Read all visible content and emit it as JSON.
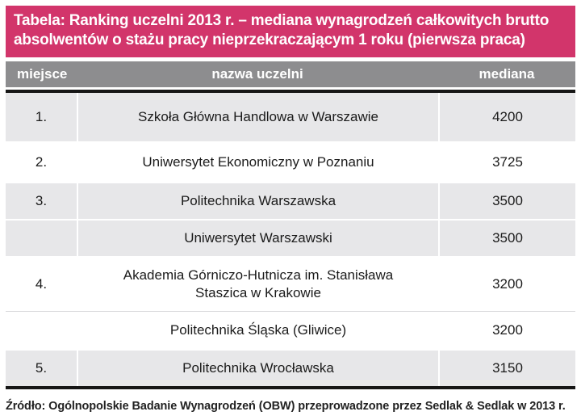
{
  "header": {
    "line1": "Tabela: Ranking uczelni 2013 r. – mediana wynagrodzeń całkowitych brutto",
    "line2": "absolwentów o stażu pracy nieprzekraczającym 1 roku (pierwsza praca)"
  },
  "chart_data": {
    "type": "table",
    "title": "Tabela: Ranking uczelni 2013 r. – mediana wynagrodzeń całkowitych brutto absolwentów o stażu pracy nieprzekraczającym 1 roku (pierwsza praca)",
    "columns": [
      "miejsce",
      "nazwa uczelni",
      "mediana"
    ],
    "rows": [
      [
        "1.",
        "Szkoła Główna Handlowa w Warszawie",
        4200
      ],
      [
        "2.",
        "Uniwersytet Ekonomiczny w Poznaniu",
        3725
      ],
      [
        "3.",
        "Politechnika Warszawska",
        3500
      ],
      [
        "",
        "Uniwersytet Warszawski",
        3500
      ],
      [
        "4.",
        "Akademia Górniczo-Hutnicza im. Stanisława Staszica w Krakowie",
        3200
      ],
      [
        "",
        "Politechnika Śląska (Gliwice)",
        3200
      ],
      [
        "5.",
        "Politechnika Wrocławska",
        3150
      ]
    ],
    "source": "Źródło: Ogólnopolskie Badanie Wynagrodzeń (OBW) przeprowadzone przez Sedlak & Sedlak w 2013 r."
  },
  "colors": {
    "accent_pink": "#d2356b",
    "header_gray": "#8d8d8f",
    "row_gray": "#e7e7e9",
    "border_black": "#161616"
  }
}
